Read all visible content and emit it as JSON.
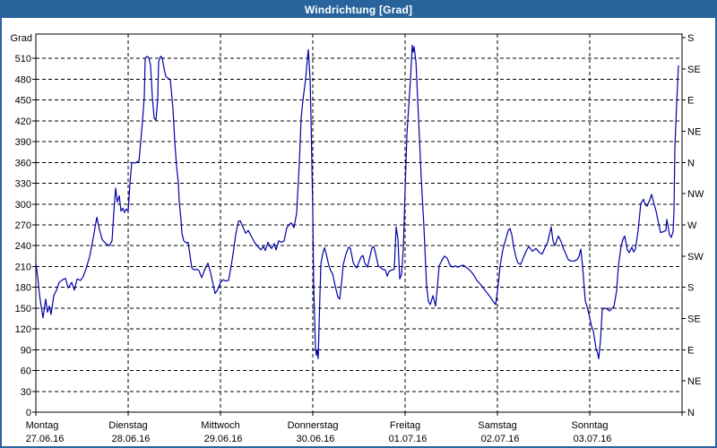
{
  "window": {
    "title": "Windrichtung [Grad]"
  },
  "colors": {
    "titlebar": "#28649B",
    "frame": "#28649B",
    "plot_border": "#000000",
    "grid": "#000000",
    "line": "#0000AA",
    "background": "#FFFFFF",
    "text": "#000000"
  },
  "chart_data": {
    "type": "line",
    "title": "Windrichtung [Grad]",
    "y_left_title": "Grad",
    "ylim": [
      0,
      540
    ],
    "y_left_step": 30,
    "y_left_ticks": [
      0,
      30,
      60,
      90,
      120,
      150,
      180,
      210,
      240,
      270,
      300,
      330,
      360,
      390,
      420,
      450,
      480,
      510
    ],
    "y_right_ticks": [
      [
        0,
        "N"
      ],
      [
        45,
        "NE"
      ],
      [
        90,
        "E"
      ],
      [
        135,
        "SE"
      ],
      [
        180,
        "S"
      ],
      [
        225,
        "SW"
      ],
      [
        270,
        "W"
      ],
      [
        315,
        "NW"
      ],
      [
        360,
        "N"
      ],
      [
        405,
        "NE"
      ],
      [
        450,
        "E"
      ],
      [
        495,
        "SE"
      ],
      [
        540,
        "S"
      ]
    ],
    "grid": "dashed",
    "days": [
      {
        "label": "Montag",
        "date": "27.06.16"
      },
      {
        "label": "Dienstag",
        "date": "28.06.16"
      },
      {
        "label": "Mittwoch",
        "date": "29.06.16"
      },
      {
        "label": "Donnerstag",
        "date": "30.06.16"
      },
      {
        "label": "Freitag",
        "date": "01.07.16"
      },
      {
        "label": "Samstag",
        "date": "02.07.16"
      },
      {
        "label": "Sonntag",
        "date": "03.07.16"
      }
    ],
    "series": [
      {
        "name": "Windrichtung",
        "unit": "Grad",
        "x_unit": "days_from_monday",
        "points": [
          [
            0.0,
            215
          ],
          [
            0.019,
            196
          ],
          [
            0.039,
            170
          ],
          [
            0.058,
            152
          ],
          [
            0.078,
            136
          ],
          [
            0.107,
            163
          ],
          [
            0.126,
            144
          ],
          [
            0.146,
            153
          ],
          [
            0.165,
            141
          ],
          [
            0.194,
            168
          ],
          [
            0.223,
            176
          ],
          [
            0.252,
            187
          ],
          [
            0.291,
            191
          ],
          [
            0.32,
            193
          ],
          [
            0.35,
            179
          ],
          [
            0.388,
            187
          ],
          [
            0.417,
            176
          ],
          [
            0.447,
            192
          ],
          [
            0.485,
            190
          ],
          [
            0.515,
            196
          ],
          [
            0.544,
            207
          ],
          [
            0.583,
            224
          ],
          [
            0.621,
            251
          ],
          [
            0.66,
            281
          ],
          [
            0.689,
            263
          ],
          [
            0.718,
            249
          ],
          [
            0.757,
            243
          ],
          [
            0.796,
            240
          ],
          [
            0.825,
            247
          ],
          [
            0.845,
            288
          ],
          [
            0.864,
            323
          ],
          [
            0.883,
            303
          ],
          [
            0.903,
            312
          ],
          [
            0.922,
            290
          ],
          [
            0.942,
            294
          ],
          [
            0.961,
            288
          ],
          [
            0.981,
            293
          ],
          [
            1.0,
            290
          ],
          [
            1.019,
            330
          ],
          [
            1.039,
            360
          ],
          [
            1.068,
            359
          ],
          [
            1.097,
            361
          ],
          [
            1.117,
            362
          ],
          [
            1.136,
            390
          ],
          [
            1.155,
            420
          ],
          [
            1.175,
            455
          ],
          [
            1.184,
            510
          ],
          [
            1.204,
            513
          ],
          [
            1.223,
            511
          ],
          [
            1.243,
            500
          ],
          [
            1.262,
            454
          ],
          [
            1.282,
            424
          ],
          [
            1.301,
            421
          ],
          [
            1.32,
            452
          ],
          [
            1.33,
            505
          ],
          [
            1.35,
            513
          ],
          [
            1.369,
            511
          ],
          [
            1.388,
            496
          ],
          [
            1.408,
            484
          ],
          [
            1.437,
            481
          ],
          [
            1.456,
            479
          ],
          [
            1.476,
            452
          ],
          [
            1.485,
            437
          ],
          [
            1.505,
            390
          ],
          [
            1.524,
            355
          ],
          [
            1.544,
            330
          ],
          [
            1.553,
            303
          ],
          [
            1.573,
            277
          ],
          [
            1.583,
            258
          ],
          [
            1.602,
            247
          ],
          [
            1.631,
            244
          ],
          [
            1.65,
            245
          ],
          [
            1.67,
            226
          ],
          [
            1.689,
            208
          ],
          [
            1.718,
            205
          ],
          [
            1.748,
            206
          ],
          [
            1.767,
            204
          ],
          [
            1.796,
            194
          ],
          [
            1.825,
            204
          ],
          [
            1.845,
            210
          ],
          [
            1.864,
            215
          ],
          [
            1.893,
            201
          ],
          [
            1.913,
            189
          ],
          [
            1.942,
            171
          ],
          [
            1.971,
            177
          ],
          [
            2.0,
            187
          ],
          [
            2.029,
            191
          ],
          [
            2.058,
            189
          ],
          [
            2.087,
            190
          ],
          [
            2.117,
            212
          ],
          [
            2.136,
            228
          ],
          [
            2.165,
            256
          ],
          [
            2.194,
            275
          ],
          [
            2.214,
            276
          ],
          [
            2.243,
            267
          ],
          [
            2.272,
            258
          ],
          [
            2.301,
            262
          ],
          [
            2.34,
            252
          ],
          [
            2.369,
            245
          ],
          [
            2.398,
            240
          ],
          [
            2.437,
            234
          ],
          [
            2.466,
            239
          ],
          [
            2.485,
            233
          ],
          [
            2.515,
            245
          ],
          [
            2.534,
            239
          ],
          [
            2.553,
            236
          ],
          [
            2.583,
            243
          ],
          [
            2.602,
            234
          ],
          [
            2.631,
            247
          ],
          [
            2.66,
            245
          ],
          [
            2.689,
            247
          ],
          [
            2.718,
            266
          ],
          [
            2.748,
            271
          ],
          [
            2.767,
            273
          ],
          [
            2.796,
            266
          ],
          [
            2.825,
            287
          ],
          [
            2.854,
            360
          ],
          [
            2.874,
            424
          ],
          [
            2.893,
            450
          ],
          [
            2.922,
            480
          ],
          [
            2.942,
            510
          ],
          [
            2.951,
            523
          ],
          [
            2.971,
            480
          ],
          [
            2.981,
            424
          ],
          [
            3.0,
            289
          ],
          [
            3.01,
            181
          ],
          [
            3.029,
            93
          ],
          [
            3.039,
            82
          ],
          [
            3.049,
            90
          ],
          [
            3.058,
            77
          ],
          [
            3.078,
            170
          ],
          [
            3.087,
            213
          ],
          [
            3.107,
            228
          ],
          [
            3.126,
            237
          ],
          [
            3.146,
            228
          ],
          [
            3.175,
            211
          ],
          [
            3.194,
            204
          ],
          [
            3.214,
            200
          ],
          [
            3.243,
            182
          ],
          [
            3.272,
            166
          ],
          [
            3.291,
            163
          ],
          [
            3.311,
            185
          ],
          [
            3.33,
            213
          ],
          [
            3.359,
            228
          ],
          [
            3.388,
            238
          ],
          [
            3.408,
            236
          ],
          [
            3.437,
            216
          ],
          [
            3.456,
            211
          ],
          [
            3.476,
            208
          ],
          [
            3.505,
            218
          ],
          [
            3.524,
            224
          ],
          [
            3.544,
            226
          ],
          [
            3.563,
            215
          ],
          [
            3.592,
            209
          ],
          [
            3.612,
            220
          ],
          [
            3.641,
            237
          ],
          [
            3.66,
            239
          ],
          [
            3.68,
            229
          ],
          [
            3.709,
            211
          ],
          [
            3.728,
            209
          ],
          [
            3.757,
            206
          ],
          [
            3.786,
            205
          ],
          [
            3.806,
            196
          ],
          [
            3.825,
            203
          ],
          [
            3.854,
            205
          ],
          [
            3.883,
            206
          ],
          [
            3.903,
            267
          ],
          [
            3.922,
            250
          ],
          [
            3.942,
            192
          ],
          [
            3.961,
            199
          ],
          [
            3.981,
            235
          ],
          [
            4.0,
            320
          ],
          [
            4.019,
            400
          ],
          [
            4.039,
            440
          ],
          [
            4.058,
            480
          ],
          [
            4.078,
            529
          ],
          [
            4.087,
            519
          ],
          [
            4.097,
            527
          ],
          [
            4.117,
            505
          ],
          [
            4.126,
            480
          ],
          [
            4.146,
            424
          ],
          [
            4.175,
            338
          ],
          [
            4.204,
            267
          ],
          [
            4.233,
            181
          ],
          [
            4.252,
            160
          ],
          [
            4.272,
            155
          ],
          [
            4.301,
            168
          ],
          [
            4.33,
            153
          ],
          [
            4.35,
            180
          ],
          [
            4.369,
            211
          ],
          [
            4.398,
            219
          ],
          [
            4.427,
            225
          ],
          [
            4.456,
            222
          ],
          [
            4.485,
            212
          ],
          [
            4.515,
            209
          ],
          [
            4.544,
            211
          ],
          [
            4.573,
            209
          ],
          [
            4.602,
            211
          ],
          [
            4.631,
            212
          ],
          [
            4.66,
            209
          ],
          [
            4.689,
            206
          ],
          [
            4.718,
            202
          ],
          [
            4.748,
            197
          ],
          [
            4.777,
            190
          ],
          [
            4.806,
            186
          ],
          [
            4.835,
            181
          ],
          [
            4.864,
            176
          ],
          [
            4.893,
            171
          ],
          [
            4.922,
            166
          ],
          [
            4.951,
            160
          ],
          [
            4.981,
            155
          ],
          [
            5.01,
            185
          ],
          [
            5.029,
            211
          ],
          [
            5.058,
            234
          ],
          [
            5.087,
            248
          ],
          [
            5.117,
            262
          ],
          [
            5.136,
            265
          ],
          [
            5.155,
            256
          ],
          [
            5.175,
            239
          ],
          [
            5.204,
            222
          ],
          [
            5.223,
            215
          ],
          [
            5.252,
            213
          ],
          [
            5.282,
            223
          ],
          [
            5.311,
            232
          ],
          [
            5.34,
            239
          ],
          [
            5.379,
            232
          ],
          [
            5.417,
            236
          ],
          [
            5.456,
            230
          ],
          [
            5.485,
            228
          ],
          [
            5.515,
            237
          ],
          [
            5.544,
            245
          ],
          [
            5.583,
            267
          ],
          [
            5.602,
            247
          ],
          [
            5.621,
            240
          ],
          [
            5.641,
            247
          ],
          [
            5.66,
            254
          ],
          [
            5.689,
            246
          ],
          [
            5.709,
            238
          ],
          [
            5.738,
            229
          ],
          [
            5.767,
            220
          ],
          [
            5.796,
            218
          ],
          [
            5.835,
            218
          ],
          [
            5.864,
            220
          ],
          [
            5.883,
            224
          ],
          [
            5.903,
            235
          ],
          [
            5.922,
            211
          ],
          [
            5.951,
            161
          ],
          [
            5.971,
            152
          ],
          [
            6.0,
            136
          ],
          [
            6.019,
            124
          ],
          [
            6.039,
            117
          ],
          [
            6.068,
            92
          ],
          [
            6.087,
            84
          ],
          [
            6.097,
            77
          ],
          [
            6.117,
            105
          ],
          [
            6.136,
            148
          ],
          [
            6.165,
            150
          ],
          [
            6.194,
            148
          ],
          [
            6.214,
            146
          ],
          [
            6.243,
            150
          ],
          [
            6.262,
            152
          ],
          [
            6.291,
            175
          ],
          [
            6.311,
            211
          ],
          [
            6.34,
            239
          ],
          [
            6.359,
            249
          ],
          [
            6.379,
            254
          ],
          [
            6.408,
            234
          ],
          [
            6.427,
            230
          ],
          [
            6.456,
            238
          ],
          [
            6.476,
            231
          ],
          [
            6.495,
            235
          ],
          [
            6.524,
            262
          ],
          [
            6.553,
            301
          ],
          [
            6.583,
            307
          ],
          [
            6.602,
            299
          ],
          [
            6.621,
            297
          ],
          [
            6.65,
            306
          ],
          [
            6.67,
            314
          ],
          [
            6.699,
            299
          ],
          [
            6.718,
            290
          ],
          [
            6.748,
            271
          ],
          [
            6.767,
            259
          ],
          [
            6.796,
            260
          ],
          [
            6.825,
            262
          ],
          [
            6.835,
            278
          ],
          [
            6.864,
            256
          ],
          [
            6.883,
            252
          ],
          [
            6.903,
            260
          ],
          [
            6.913,
            290
          ],
          [
            6.922,
            381
          ],
          [
            6.942,
            445
          ],
          [
            6.961,
            500
          ]
        ]
      }
    ]
  }
}
